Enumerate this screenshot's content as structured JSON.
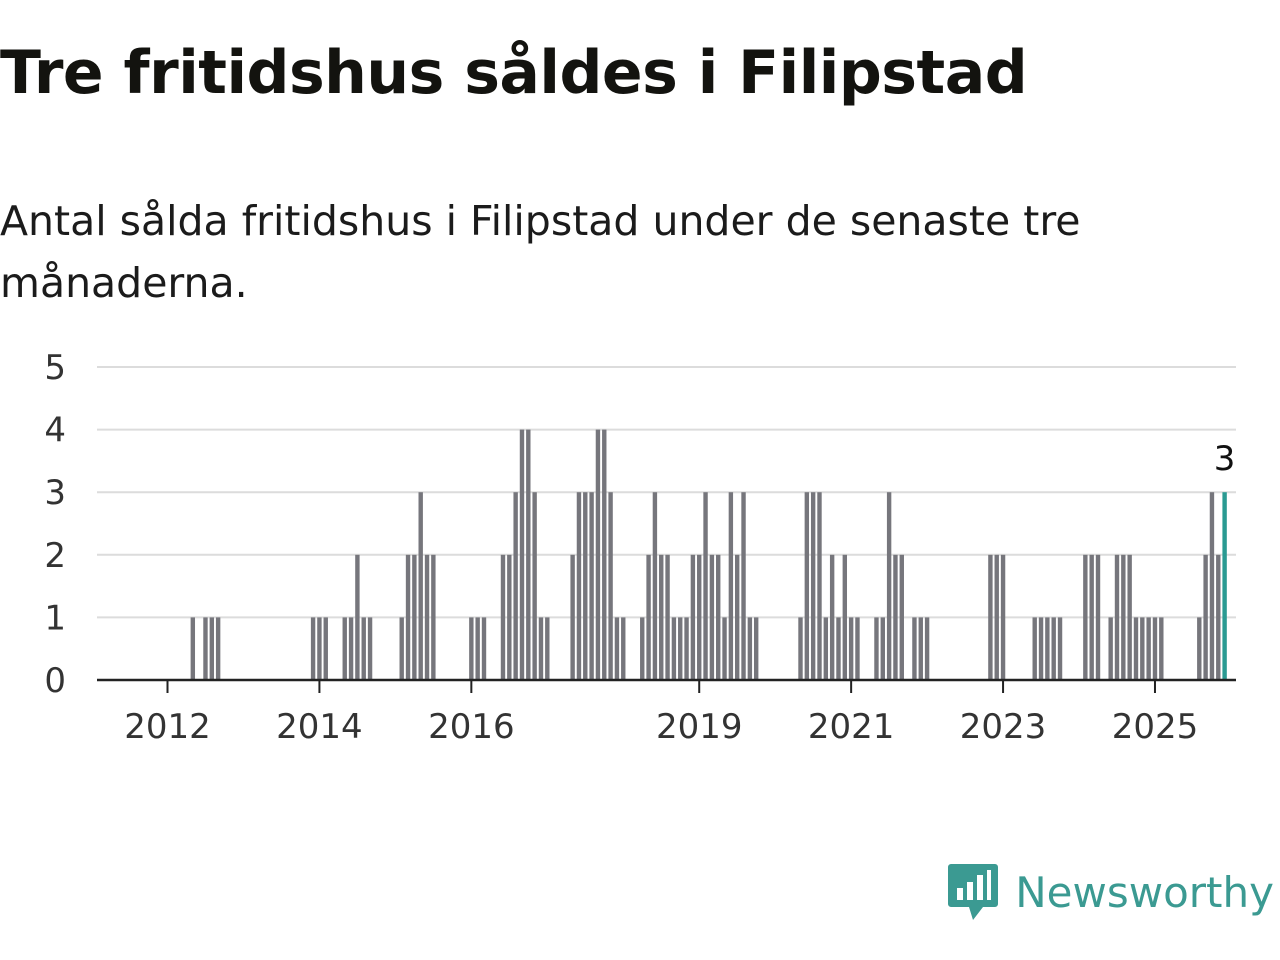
{
  "header": {
    "title": "Tre fritidshus såldes i Filipstad",
    "subtitle": "Antal sålda fritidshus i Filipstad under de senaste tre månaderna."
  },
  "brand": {
    "name": "Newsworthy",
    "icon": "newsworthy-logo-icon",
    "color": "#3b9a92"
  },
  "chart_data": {
    "type": "bar",
    "title": "Tre fritidshus såldes i Filipstad",
    "subtitle": "Antal sålda fritidshus i Filipstad under de senaste tre månaderna.",
    "xlabel": "",
    "ylabel": "",
    "x_start": "2011-03",
    "x_interval": "month",
    "ylim": [
      0,
      5
    ],
    "yticks": [
      0,
      1,
      2,
      3,
      4,
      5
    ],
    "xtick_labels": [
      "2012",
      "2014",
      "2016",
      "2019",
      "2021",
      "2023",
      "2025"
    ],
    "grid": true,
    "bar_color": "#76767c",
    "highlight_color": "#2a9a92",
    "highlight_last": true,
    "last_value_label": "3",
    "values": [
      0,
      0,
      0,
      0,
      0,
      0,
      0,
      0,
      0,
      0,
      0,
      0,
      0,
      0,
      1,
      0,
      1,
      1,
      1,
      0,
      0,
      0,
      0,
      0,
      0,
      0,
      0,
      0,
      0,
      0,
      0,
      0,
      0,
      1,
      1,
      1,
      0,
      0,
      1,
      1,
      2,
      1,
      1,
      0,
      0,
      0,
      0,
      1,
      2,
      2,
      3,
      2,
      2,
      0,
      0,
      0,
      0,
      0,
      1,
      1,
      1,
      0,
      0,
      2,
      2,
      3,
      4,
      4,
      3,
      1,
      1,
      0,
      0,
      0,
      2,
      3,
      3,
      3,
      4,
      4,
      3,
      1,
      1,
      0,
      0,
      1,
      2,
      3,
      2,
      2,
      1,
      1,
      1,
      2,
      2,
      3,
      2,
      2,
      1,
      3,
      2,
      3,
      1,
      1,
      0,
      0,
      0,
      0,
      0,
      0,
      1,
      3,
      3,
      3,
      1,
      2,
      1,
      2,
      1,
      1,
      0,
      0,
      1,
      1,
      3,
      2,
      2,
      0,
      1,
      1,
      1,
      0,
      0,
      0,
      0,
      0,
      0,
      0,
      0,
      0,
      2,
      2,
      2,
      0,
      0,
      0,
      0,
      1,
      1,
      1,
      1,
      1,
      0,
      0,
      0,
      2,
      2,
      2,
      0,
      1,
      2,
      2,
      2,
      1,
      1,
      1,
      1,
      1,
      0,
      0,
      0,
      0,
      0,
      1,
      2,
      3,
      2,
      3
    ]
  }
}
